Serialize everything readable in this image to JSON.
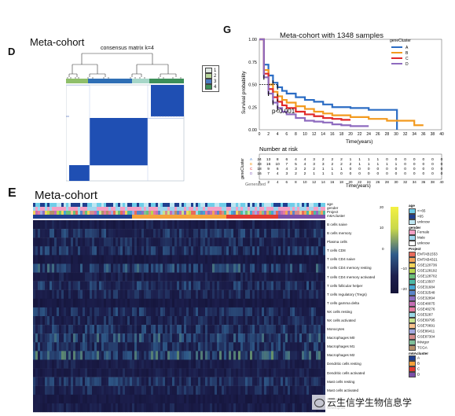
{
  "panels": {
    "D": {
      "letter": "D",
      "title": "Meta-cohort",
      "matrix_title": "consensus matrix k=4",
      "legend": [
        "1",
        "2",
        "3",
        "4"
      ],
      "cluster_colors": [
        "#a6d6c8",
        "#8fbf6a",
        "#2f6fb5",
        "#1f5a9b"
      ]
    },
    "G": {
      "letter": "G",
      "title": "Meta-cohort with 1348 samples",
      "ylabel": "Survival probability",
      "xlabel": "Time(years)",
      "pvalue": "p<0.001",
      "legend_title": "geneCluster",
      "risk_title": "Number at risk",
      "risk_ylabel": "geneCluster",
      "risk_xlabel": "Time(years)",
      "risk_trailing": "Generated"
    },
    "E": {
      "letter": "E",
      "title": "Meta-cohort",
      "annotation_rows": [
        "age",
        "gender",
        "Project",
        "m6Acluster"
      ],
      "cells": [
        "B cells naive",
        "B cells memory",
        "Plasma cells",
        "T cells CD8",
        "T cells CD4 naive",
        "T cells CD4 memory resting",
        "T cells CD4 memory activated",
        "T cells follicular helper",
        "T cells regulatory (Tregs)",
        "T cells gamma delta",
        "NK cells resting",
        "NK cells activated",
        "Monocytes",
        "Macrophages M0",
        "Macrophages M1",
        "Macrophages M2",
        "Dendritic cells resting",
        "Dendritic cells activated",
        "Mast cells resting",
        "Mast cells activated",
        "Eosinophils",
        "Neutrophils"
      ],
      "colorbar_ticks": [
        "20",
        "10",
        "0",
        "−10",
        "−20"
      ],
      "legend_age_title": "age",
      "legend_age": [
        "<=65",
        ">65",
        "unknow"
      ],
      "legend_gender_title": "gender",
      "legend_gender": [
        "Female",
        "Male",
        "unknow"
      ],
      "legend_project_title": "Project",
      "legend_project": [
        "EMTAB1553",
        "EMTAB4321",
        "GSE120736",
        "GSE128192",
        "GSE128702",
        "GSE13507",
        "GSE31684",
        "GSE32548",
        "GSE32894",
        "GSE48075",
        "GSE48276",
        "GSE5287",
        "GSE69795",
        "GSE70691",
        "GSE86411",
        "GSE87304",
        "IMvigor",
        "TCGA"
      ],
      "legend_m6a_title": "m6Acluster",
      "legend_m6a": [
        "A",
        "B",
        "C",
        "D"
      ]
    },
    "watermark": "云生信学生物信息学"
  },
  "colors": {
    "A": "#2b6cc4",
    "B": "#f39a1e",
    "C": "#e02a2a",
    "D": "#8e6bbf",
    "matrix_blue": "#1f4fb3"
  },
  "chart_data": [
    {
      "type": "line",
      "title": "Meta-cohort with 1348 samples",
      "xlabel": "Time(years)",
      "ylabel": "Survival probability",
      "xlim": [
        0,
        40
      ],
      "ylim": [
        0,
        1
      ],
      "xticks": [
        0,
        2,
        4,
        6,
        8,
        10,
        12,
        14,
        16,
        18,
        20,
        22,
        24,
        26,
        28,
        30,
        32,
        34,
        36,
        38,
        40
      ],
      "yticks": [
        0.0,
        0.25,
        0.5,
        0.75,
        1.0
      ],
      "yticklabels": [
        "0.00",
        "0.25",
        "0.50",
        "0.75",
        "1.00"
      ],
      "legend": "top-right",
      "annotation": "p<0.001",
      "series": [
        {
          "name": "A",
          "x": [
            0,
            1,
            2,
            3,
            4,
            5,
            6,
            8,
            10,
            12,
            14,
            16,
            20,
            24,
            28,
            30,
            30.2
          ],
          "y": [
            1.0,
            0.72,
            0.6,
            0.52,
            0.47,
            0.43,
            0.4,
            0.36,
            0.33,
            0.31,
            0.28,
            0.25,
            0.24,
            0.22,
            0.22,
            0.22,
            0.0
          ]
        },
        {
          "name": "B",
          "x": [
            0,
            1,
            2,
            3,
            4,
            5,
            6,
            8,
            10,
            12,
            14,
            16,
            20,
            24,
            28,
            30,
            34,
            36
          ],
          "y": [
            1.0,
            0.66,
            0.5,
            0.42,
            0.37,
            0.33,
            0.3,
            0.26,
            0.23,
            0.2,
            0.18,
            0.16,
            0.14,
            0.12,
            0.1,
            0.1,
            0.05,
            0.05
          ]
        },
        {
          "name": "C",
          "x": [
            0,
            1,
            2,
            3,
            4,
            5,
            6,
            8,
            10,
            12,
            14,
            16,
            18,
            20
          ],
          "y": [
            1.0,
            0.62,
            0.45,
            0.36,
            0.31,
            0.27,
            0.24,
            0.2,
            0.17,
            0.15,
            0.13,
            0.12,
            0.11,
            0.11
          ]
        },
        {
          "name": "D",
          "x": [
            0,
            1,
            2,
            3,
            4,
            5,
            6,
            8,
            10,
            12,
            14,
            16,
            18,
            20,
            22,
            24
          ],
          "y": [
            1.0,
            0.58,
            0.4,
            0.3,
            0.24,
            0.2,
            0.17,
            0.13,
            0.1,
            0.09,
            0.08,
            0.06,
            0.05,
            0.04,
            0.04,
            0.04
          ]
        }
      ]
    },
    {
      "type": "table",
      "title": "Number at risk",
      "columns": [
        0,
        2,
        4,
        6,
        8,
        10,
        12,
        14,
        16,
        18,
        20,
        22,
        24,
        26,
        28,
        30,
        32,
        34,
        36,
        38,
        40
      ],
      "rows": [
        {
          "name": "A",
          "values": [
            24,
            13,
            8,
            6,
            4,
            4,
            3,
            2,
            2,
            2,
            1,
            1,
            1,
            1,
            0,
            0,
            0,
            0,
            0,
            0,
            0
          ]
        },
        {
          "name": "B",
          "values": [
            33,
            16,
            10,
            7,
            5,
            4,
            3,
            3,
            2,
            2,
            2,
            1,
            1,
            1,
            1,
            1,
            0,
            0,
            0,
            0,
            0
          ]
        },
        {
          "name": "C",
          "values": [
            18,
            9,
            6,
            4,
            3,
            2,
            2,
            1,
            1,
            1,
            0,
            0,
            0,
            0,
            0,
            0,
            0,
            0,
            0,
            0,
            0
          ]
        },
        {
          "name": "D",
          "values": [
            16,
            7,
            4,
            3,
            2,
            2,
            1,
            1,
            1,
            0,
            0,
            0,
            0,
            0,
            0,
            0,
            0,
            0,
            0,
            0,
            0
          ]
        }
      ]
    }
  ]
}
